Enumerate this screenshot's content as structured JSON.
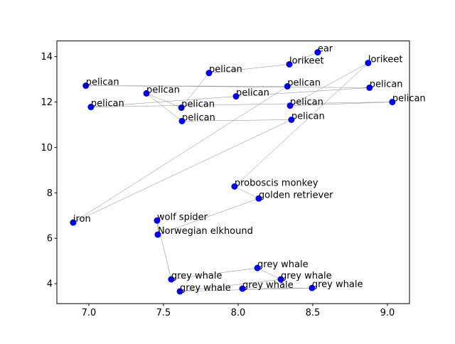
{
  "chart_data": {
    "type": "scatter",
    "labels": [
      "ear",
      "lorikeet",
      "pelican",
      "pelican",
      "pelican",
      "pelican",
      "pelican",
      "iron",
      "pelican",
      "pelican",
      "pelican",
      "pelican",
      "pelican",
      "pelican",
      "pelican",
      "lorikeet",
      "proboscis monkey",
      "golden retriever",
      "Norwegian elkhound",
      "wolf spider",
      "grey whale",
      "grey whale",
      "grey whale",
      "grey whale",
      "grey whale",
      "grey whale"
    ],
    "x": [
      8.533,
      8.343,
      7.805,
      7.62,
      7.386,
      7.624,
      8.357,
      6.895,
      8.33,
      6.98,
      8.88,
      7.986,
      7.014,
      9.033,
      8.348,
      8.871,
      7.976,
      8.138,
      7.462,
      7.457,
      7.552,
      8.129,
      8.286,
      7.61,
      8.495,
      8.029
    ],
    "y": [
      14.19,
      13.66,
      13.28,
      11.75,
      12.38,
      11.16,
      11.22,
      6.69,
      12.69,
      12.72,
      12.63,
      12.25,
      11.78,
      12.0,
      11.84,
      13.72,
      8.28,
      7.75,
      6.16,
      6.78,
      4.19,
      4.69,
      4.19,
      3.66,
      3.81,
      3.78
    ],
    "color": "#0000ff",
    "line_color": "#888888",
    "xlim": [
      6.786,
      9.148
    ],
    "ylim": [
      3.12,
      14.69
    ],
    "xticks": [
      {
        "value": 7,
        "label": "7.0"
      },
      {
        "value": 7.5,
        "label": "7.5"
      },
      {
        "value": 8,
        "label": "8.0"
      },
      {
        "value": 8.5,
        "label": "8.5"
      },
      {
        "value": 9,
        "label": "9.0"
      }
    ],
    "yticks": [
      4,
      6,
      8,
      10,
      12,
      14
    ]
  }
}
